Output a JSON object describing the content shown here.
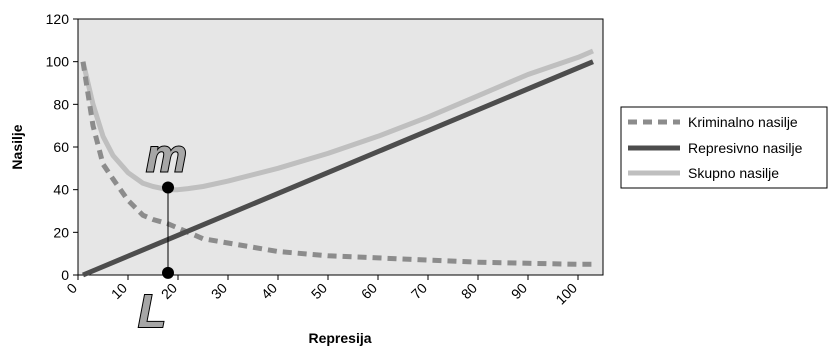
{
  "chart_data": {
    "type": "line",
    "xlabel": "Represija",
    "ylabel": "Nasilje",
    "xlim": [
      0,
      105
    ],
    "ylim": [
      0,
      120
    ],
    "x_ticks": [
      0,
      10,
      20,
      30,
      40,
      50,
      60,
      70,
      80,
      90,
      100
    ],
    "y_ticks": [
      0,
      20,
      40,
      60,
      80,
      100,
      120
    ],
    "grid": false,
    "legend_position": "right",
    "series": [
      {
        "name": "Kriminalno nasilje",
        "style": "dashed",
        "color": "#8c8c8c",
        "x": [
          1,
          3,
          5,
          7,
          10,
          13,
          15,
          18,
          22,
          25,
          30,
          40,
          50,
          60,
          70,
          80,
          90,
          100,
          103
        ],
        "y": [
          100,
          70,
          52,
          45,
          35,
          28,
          26,
          24,
          20,
          17,
          15,
          11,
          9,
          8,
          7,
          6,
          5.5,
          5,
          5
        ]
      },
      {
        "name": "Represivno nasilje",
        "style": "solid",
        "color": "#4d4d4d",
        "x": [
          1,
          103
        ],
        "y": [
          0,
          100
        ]
      },
      {
        "name": "Skupno nasilje",
        "style": "solid",
        "color": "#bfbfbf",
        "x": [
          1,
          3,
          5,
          7,
          10,
          13,
          15,
          18,
          20,
          22,
          25,
          30,
          40,
          50,
          60,
          70,
          80,
          90,
          100,
          103
        ],
        "y": [
          100,
          80,
          65,
          56,
          48,
          43,
          41.5,
          40,
          40,
          40.5,
          41.5,
          44,
          50,
          57,
          65,
          74,
          84,
          94,
          102,
          105
        ]
      }
    ],
    "annotations": [
      {
        "label": "m",
        "x": 18,
        "y": 41
      },
      {
        "label": "L",
        "x": 18,
        "y": 1
      }
    ]
  },
  "colors": {
    "plot_background": "#e6e6e6",
    "marker": "#000000"
  }
}
